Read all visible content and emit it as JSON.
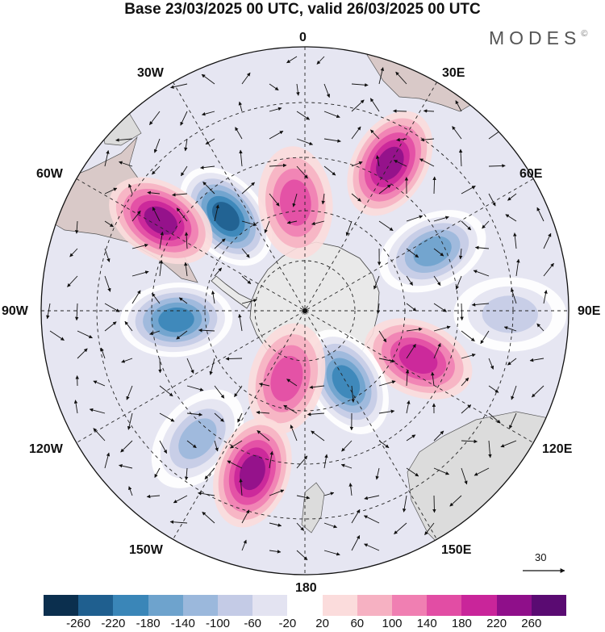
{
  "title": "Base 23/03/2025 00 UTC, valid 26/03/2025 00 UTC",
  "brand": {
    "name": "MODES",
    "mark": "©"
  },
  "longitude_labels": {
    "lon_0": "0",
    "lon_30e": "30E",
    "lon_60e": "60E",
    "lon_90e": "90E",
    "lon_120e": "120E",
    "lon_150e": "150E",
    "lon_180": "180",
    "lon_150w": "150W",
    "lon_120w": "120W",
    "lon_90w": "90W",
    "lon_60w": "60W",
    "lon_30w": "30W"
  },
  "vector_scale": {
    "label": "30"
  },
  "colorbar": {
    "colors": [
      "#0b2f4e",
      "#1f5f8f",
      "#3a86b8",
      "#6ea3cd",
      "#9bb8dc",
      "#c4cbe6",
      "#e3e3f1",
      "#ffffff",
      "#fbdcdc",
      "#f6b1c2",
      "#f07fb2",
      "#e24da4",
      "#c9259a",
      "#8f0f8a",
      "#5a0b72"
    ],
    "ticks": [
      "-260",
      "-220",
      "-180",
      "-140",
      "-100",
      "-60",
      "-20",
      "20",
      "60",
      "100",
      "140",
      "180",
      "220",
      "260"
    ]
  },
  "anomaly_centers": [
    {
      "lon_deg": -40,
      "colat_deg": 42,
      "value": -240
    },
    {
      "lon_deg": -58,
      "colat_deg": 58,
      "value": 210
    },
    {
      "lon_deg": -94,
      "colat_deg": 44,
      "value": -200
    },
    {
      "lon_deg": -5,
      "colat_deg": 37,
      "value": 110
    },
    {
      "lon_deg": 30,
      "colat_deg": 58,
      "value": 180
    },
    {
      "lon_deg": 65,
      "colat_deg": 48,
      "value": -170
    },
    {
      "lon_deg": 91,
      "colat_deg": 70,
      "value": -60
    },
    {
      "lon_deg": 113,
      "colat_deg": 42,
      "value": 170
    },
    {
      "lon_deg": 150,
      "colat_deg": 28,
      "value": -200
    },
    {
      "lon_deg": -165,
      "colat_deg": 24,
      "value": 120
    },
    {
      "lon_deg": -140,
      "colat_deg": 57,
      "value": -110
    },
    {
      "lon_deg": -162,
      "colat_deg": 58,
      "value": 190
    }
  ]
}
